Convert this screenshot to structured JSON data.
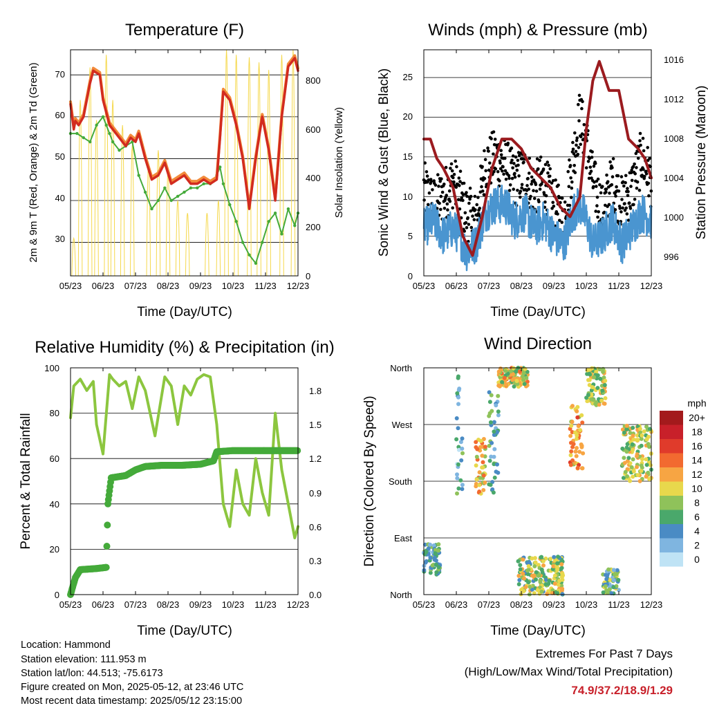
{
  "x_ticks": [
    "05/23",
    "06/23",
    "07/23",
    "08/23",
    "09/23",
    "10/23",
    "11/23",
    "12/23"
  ],
  "panels": {
    "temperature": {
      "title": "Temperature (F)",
      "ylabel": "2m & 9m T (Red, Orange) & 2m Td (Green)",
      "y2label": "Solar Insolation (Yellow)",
      "xlabel": "Time (Day/UTC)",
      "y_ticks": [
        "30",
        "40",
        "50",
        "60",
        "70"
      ],
      "y2_ticks": [
        "0",
        "200",
        "400",
        "600",
        "800"
      ]
    },
    "winds": {
      "title": "Winds (mph) & Pressure (mb)",
      "ylabel": "Sonic Wind & Gust (Blue, Black)",
      "y2label": "Station Pressure (Maroon)",
      "xlabel": "Time (Day/UTC)",
      "y_ticks": [
        "0",
        "5",
        "10",
        "15",
        "20",
        "25"
      ],
      "y2_ticks": [
        "996",
        "1000",
        "1004",
        "1008",
        "1012",
        "1016"
      ]
    },
    "humidity": {
      "title": "Relative Humidity (%) & Precipitation (in)",
      "ylabel": "Percent & Total Rainfall",
      "xlabel": "Time (Day/UTC)",
      "y_ticks": [
        "0",
        "20",
        "40",
        "60",
        "80",
        "100"
      ],
      "y2_ticks": [
        "0.0",
        "0.3",
        "0.6",
        "0.9",
        "1.2",
        "1.5",
        "1.8"
      ]
    },
    "direction": {
      "title": "Wind Direction",
      "ylabel": "Direction (Colored By Speed)",
      "xlabel": "Time (Day/UTC)",
      "y_ticks": [
        "North",
        "East",
        "South",
        "West",
        "North"
      ],
      "legend_title": "mph",
      "legend_labels": [
        "20+",
        "18",
        "16",
        "14",
        "12",
        "10",
        "8",
        "6",
        "4",
        "2",
        "0"
      ],
      "legend_colors": [
        "#a31a1c",
        "#c8202a",
        "#e03b2b",
        "#f26a30",
        "#f7a543",
        "#e8d84c",
        "#8fc25a",
        "#4aa86b",
        "#4a8bc4",
        "#7fb5e0",
        "#bfe3f5"
      ]
    }
  },
  "info": {
    "location": "Location: Hammond",
    "elevation": "Station elevation: 111.953 m",
    "latlon": "Station lat/lon: 44.513; -75.6173",
    "created": "Figure created on Mon, 2025-05-12, at 23:46 UTC",
    "recent": "Most recent data timestamp: 2025/05/12 23:15:00"
  },
  "extremes": {
    "line1": "Extremes For Past 7 Days",
    "line2": "(High/Low/Max Wind/Total Precipitation)",
    "high": "74.9",
    "low": "37.2",
    "wind": "18.9",
    "precip": "1.29",
    "sep": "/",
    "color_high": "#c8202a",
    "color_low": "#c8202a",
    "color_wind": "#c8202a",
    "color_precip": "#c8202a"
  },
  "chart_data": [
    {
      "type": "line",
      "title": "Temperature (F)",
      "xlabel": "Time (Day/UTC)",
      "ylabel": "2m & 9m T (Red, Orange) & 2m Td (Green)",
      "y2label": "Solar Insolation (Yellow)",
      "ylim": [
        22,
        76
      ],
      "y2lim": [
        0,
        900
      ],
      "x_range": [
        0,
        7
      ],
      "series": [
        {
          "name": "2m T",
          "color": "#d22b1f",
          "x": [
            0,
            0.1,
            0.15,
            0.25,
            0.4,
            0.6,
            0.7,
            0.9,
            1.0,
            1.1,
            1.2,
            1.3,
            1.5,
            1.7,
            1.85,
            2.0,
            2.1,
            2.3,
            2.5,
            2.7,
            2.9,
            3.1,
            3.3,
            3.5,
            3.7,
            3.9,
            4.1,
            4.3,
            4.5,
            4.6,
            4.7,
            4.9,
            5.1,
            5.3,
            5.5,
            5.7,
            5.9,
            6.1,
            6.3,
            6.5,
            6.7,
            6.9,
            7.0
          ],
          "values": [
            63,
            57,
            59,
            58,
            60,
            68,
            71,
            70,
            64,
            61,
            58,
            57,
            55,
            53,
            55,
            54,
            56,
            50,
            45,
            46,
            49,
            44,
            45,
            46,
            44,
            44,
            45,
            44,
            45,
            55,
            66,
            64,
            58,
            50,
            38,
            50,
            60,
            52,
            40,
            60,
            72,
            74,
            71
          ]
        },
        {
          "name": "Dewpoint",
          "color": "#44aa3a",
          "x": [
            0,
            0.2,
            0.4,
            0.6,
            0.8,
            1.0,
            1.1,
            1.2,
            1.3,
            1.5,
            1.7,
            1.9,
            2.1,
            2.3,
            2.5,
            2.7,
            2.9,
            3.1,
            3.3,
            3.5,
            3.7,
            3.9,
            4.1,
            4.3,
            4.5,
            4.6,
            4.7,
            4.9,
            5.1,
            5.3,
            5.5,
            5.7,
            5.9,
            6.1,
            6.3,
            6.5,
            6.7,
            6.9,
            7.0
          ],
          "values": [
            56,
            56,
            55,
            54,
            58,
            60,
            58,
            56,
            54,
            52,
            53,
            54,
            46,
            42,
            38,
            40,
            43,
            40,
            41,
            42,
            43,
            43,
            44,
            44,
            46,
            48,
            44,
            39,
            35,
            30,
            27,
            25,
            30,
            35,
            37,
            32,
            38,
            34,
            37
          ]
        },
        {
          "name": "Solar Insolation",
          "color": "#f5d84b",
          "axis": "y2",
          "x": [
            0.1,
            0.3,
            0.6,
            0.8,
            1.1,
            1.3,
            1.6,
            1.9,
            2.4,
            2.7,
            3.0,
            3.3,
            3.6,
            4.2,
            4.55,
            4.8,
            5.1,
            5.5,
            5.8,
            6.1,
            6.5,
            6.85
          ],
          "values": [
            150,
            700,
            830,
            620,
            880,
            700,
            600,
            520,
            450,
            500,
            420,
            300,
            250,
            250,
            300,
            900,
            880,
            870,
            850,
            820,
            880,
            900
          ]
        }
      ]
    },
    {
      "type": "line",
      "title": "Winds (mph) & Pressure (mb)",
      "xlabel": "Time (Day/UTC)",
      "ylabel": "Sonic Wind & Gust (Blue, Black)",
      "y2label": "Station Pressure (Maroon)",
      "ylim": [
        0,
        28.5
      ],
      "y2lim": [
        993.9,
        1017.2
      ],
      "x_range": [
        0,
        7
      ],
      "series": [
        {
          "name": "Sonic Wind",
          "color": "#4a95d0",
          "x": [
            0,
            0.3,
            0.6,
            0.9,
            1.1,
            1.3,
            1.6,
            1.9,
            2.2,
            2.5,
            2.8,
            3.1,
            3.4,
            3.7,
            4.0,
            4.3,
            4.6,
            4.8,
            5.0,
            5.2,
            5.5,
            5.8,
            6.1,
            6.4,
            6.7,
            7.0
          ],
          "values": [
            6,
            7,
            5,
            6,
            5,
            3,
            4,
            8,
            9,
            9,
            7,
            8,
            6,
            7,
            5,
            4,
            8,
            9,
            7,
            4,
            5,
            7,
            4,
            6,
            8,
            7
          ]
        },
        {
          "name": "Gust",
          "color": "#000000",
          "x": [
            0,
            0.3,
            0.6,
            0.9,
            1.1,
            1.3,
            1.6,
            1.9,
            2.2,
            2.5,
            2.8,
            3.1,
            3.4,
            3.7,
            4.0,
            4.3,
            4.6,
            4.8,
            5.0,
            5.2,
            5.5,
            5.8,
            6.1,
            6.4,
            6.7,
            7.0
          ],
          "values": [
            11,
            9,
            10,
            12,
            10,
            8,
            7,
            14,
            15,
            14,
            12,
            13,
            11,
            12,
            9,
            7,
            15,
            20,
            17,
            12,
            8,
            12,
            9,
            11,
            15,
            12
          ]
        },
        {
          "name": "Station Pressure",
          "color": "#9b1b1f",
          "axis": "y2",
          "x": [
            0,
            0.2,
            0.4,
            0.6,
            0.9,
            1.2,
            1.5,
            1.8,
            2.1,
            2.4,
            2.7,
            3.0,
            3.3,
            3.6,
            3.9,
            4.2,
            4.5,
            4.8,
            5.0,
            5.2,
            5.4,
            5.7,
            6.0,
            6.3,
            6.6,
            6.8,
            7.0
          ],
          "values": [
            1008,
            1008,
            1006,
            1005,
            1003,
            998,
            996,
            1000,
            1005,
            1008,
            1008,
            1007,
            1005,
            1004,
            1003,
            1001,
            1000,
            1002,
            1009,
            1014,
            1016,
            1013,
            1013,
            1008,
            1007,
            1006,
            1004
          ]
        }
      ]
    },
    {
      "type": "line",
      "title": "Relative Humidity (%) & Precipitation (in)",
      "xlabel": "Time (Day/UTC)",
      "ylabel": "Percent & Total Rainfall",
      "ylim": [
        0,
        100
      ],
      "y2lim": [
        0,
        2.0
      ],
      "x_range": [
        0,
        7
      ],
      "series": [
        {
          "name": "Relative Humidity",
          "color": "#8cc63f",
          "x": [
            0,
            0.1,
            0.3,
            0.5,
            0.7,
            0.8,
            1.0,
            1.2,
            1.3,
            1.5,
            1.7,
            1.9,
            2.1,
            2.3,
            2.6,
            2.9,
            3.1,
            3.3,
            3.5,
            3.7,
            3.9,
            4.1,
            4.3,
            4.5,
            4.7,
            4.9,
            5.1,
            5.3,
            5.5,
            5.7,
            5.9,
            6.1,
            6.3,
            6.5,
            6.7,
            6.9,
            7.0
          ],
          "values": [
            78,
            92,
            95,
            90,
            94,
            75,
            62,
            97,
            95,
            92,
            94,
            82,
            96,
            90,
            70,
            96,
            92,
            75,
            92,
            88,
            95,
            97,
            96,
            75,
            40,
            30,
            55,
            40,
            35,
            60,
            45,
            35,
            80,
            55,
            40,
            25,
            30
          ]
        },
        {
          "name": "Total Precipitation",
          "color": "#44aa3a",
          "axis": "y2",
          "x": [
            0,
            0.15,
            0.3,
            0.8,
            1.1,
            1.15,
            1.25,
            1.7,
            2.0,
            2.3,
            2.8,
            3.4,
            4.0,
            4.4,
            4.5,
            5.0,
            6.0,
            7.0
          ],
          "values": [
            0.0,
            0.15,
            0.22,
            0.23,
            0.24,
            0.8,
            1.03,
            1.05,
            1.1,
            1.13,
            1.14,
            1.14,
            1.15,
            1.18,
            1.26,
            1.27,
            1.27,
            1.27
          ]
        }
      ]
    },
    {
      "type": "scatter",
      "title": "Wind Direction",
      "xlabel": "Time (Day/UTC)",
      "ylabel": "Direction (Colored By Speed)",
      "y_categories": [
        "North",
        "East",
        "South",
        "West",
        "North"
      ],
      "x_range": [
        0,
        7
      ],
      "colorbar": {
        "label": "mph",
        "ticks": [
          "0",
          "2",
          "4",
          "6",
          "8",
          "10",
          "12",
          "14",
          "16",
          "18",
          "20+"
        ]
      },
      "clusters": [
        {
          "x": [
            0.0,
            0.5
          ],
          "dir": [
            30,
            80
          ],
          "speed": 5
        },
        {
          "x": [
            1.0,
            1.2
          ],
          "dir": [
            160,
            350
          ],
          "speed": 4
        },
        {
          "x": [
            1.6,
            1.9
          ],
          "dir": [
            160,
            250
          ],
          "speed": 11
        },
        {
          "x": [
            2.0,
            2.3
          ],
          "dir": [
            160,
            330
          ],
          "speed": 5
        },
        {
          "x": [
            2.3,
            3.2
          ],
          "dir": [
            330,
            360
          ],
          "speed": 10
        },
        {
          "x": [
            2.9,
            4.3
          ],
          "dir": [
            0,
            60
          ],
          "speed": 8
        },
        {
          "x": [
            4.5,
            4.9
          ],
          "dir": [
            200,
            300
          ],
          "speed": 12
        },
        {
          "x": [
            5.0,
            5.6
          ],
          "dir": [
            300,
            360
          ],
          "speed": 9
        },
        {
          "x": [
            5.5,
            6.0
          ],
          "dir": [
            0,
            40
          ],
          "speed": 6
        },
        {
          "x": [
            6.1,
            7.0
          ],
          "dir": [
            180,
            270
          ],
          "speed": 9
        }
      ]
    }
  ]
}
